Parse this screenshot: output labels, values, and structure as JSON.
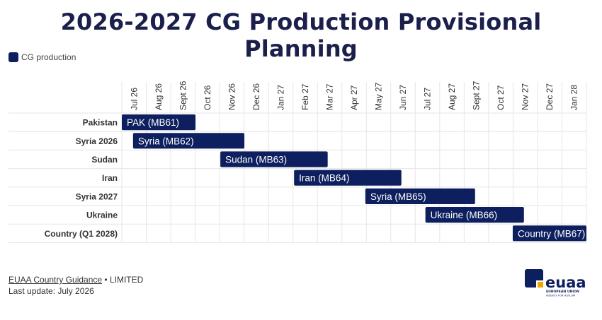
{
  "title": "2026-2027 CG Production Provisional Planning",
  "legend": {
    "label": "CG production",
    "color": "#0d1f5e"
  },
  "footer": {
    "source_link": "EUAA Country Guidance",
    "source_separator": " • ",
    "source_status": "LIMITED",
    "last_update": "Last update: July 2026"
  },
  "logo": {
    "wordmark": "euaa",
    "line1": "EUROPEAN UNION",
    "line2": "AGENCY FOR ASYLUM",
    "bar_color": "#0d1f5e",
    "accent_color": "#f0a500"
  },
  "chart_data": {
    "type": "gantt",
    "time_axis": {
      "ticks": [
        "Jul 26",
        "Aug 26",
        "Sept 26",
        "Oct 26",
        "Nov 26",
        "Dec 26",
        "Jan 27",
        "Feb 27",
        "Mar 27",
        "Apr 27",
        "May 27",
        "Jun 27",
        "Jul 27",
        "Aug 27",
        "Sept 27",
        "Oct 27",
        "Nov 27",
        "Dec 27",
        "Jan 28"
      ],
      "range": [
        "2026-07-01",
        "2028-02-01"
      ]
    },
    "rows": [
      "Pakistan",
      "Syria 2026",
      "Sudan",
      "Iran",
      "Syria 2027",
      "Ukraine",
      "Country (Q1 2028)"
    ],
    "tasks": [
      {
        "row": "Pakistan",
        "label": "PAK (MB61)",
        "start": "2026-07-01",
        "end": "2026-10-01"
      },
      {
        "row": "Syria 2026",
        "label": "Syria (MB62)",
        "start": "2026-07-15",
        "end": "2026-12-01"
      },
      {
        "row": "Sudan",
        "label": "Sudan (MB63)",
        "start": "2026-11-01",
        "end": "2027-03-15"
      },
      {
        "row": "Iran",
        "label": "Iran (MB64)",
        "start": "2027-02-01",
        "end": "2027-06-15"
      },
      {
        "row": "Syria 2027",
        "label": "Syria (MB65)",
        "start": "2027-05-01",
        "end": "2027-09-15"
      },
      {
        "row": "Ukraine",
        "label": "Ukraine (MB66)",
        "start": "2027-07-15",
        "end": "2027-11-15"
      },
      {
        "row": "Country (Q1 2028)",
        "label": "Country (MB67)",
        "start": "2027-11-01",
        "end": "2028-02-01"
      }
    ],
    "bar_color": "#0d1f5e",
    "grid": true,
    "legend_position": "top-left"
  }
}
